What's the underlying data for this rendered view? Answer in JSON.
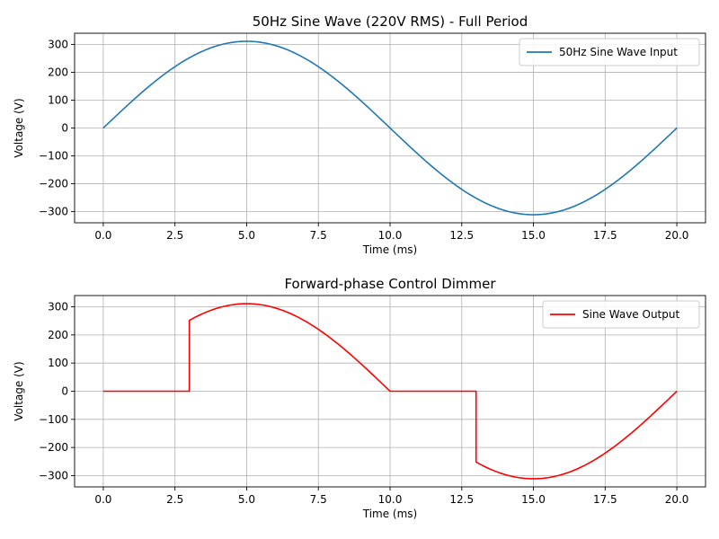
{
  "chart_data": [
    {
      "type": "line",
      "title": "50Hz Sine Wave (220V RMS) - Full Period",
      "xlabel": "Time (ms)",
      "ylabel": "Voltage (V)",
      "xlim": [
        -1,
        21
      ],
      "ylim": [
        -340,
        340
      ],
      "xticks": [
        0.0,
        2.5,
        5.0,
        7.5,
        10.0,
        12.5,
        15.0,
        17.5,
        20.0
      ],
      "xtick_labels": [
        "0.0",
        "2.5",
        "5.0",
        "7.5",
        "10.0",
        "12.5",
        "15.0",
        "17.5",
        "20.0"
      ],
      "yticks": [
        -300,
        -200,
        -100,
        0,
        100,
        200,
        300
      ],
      "ytick_labels": [
        "−300",
        "−200",
        "−100",
        "0",
        "100",
        "200",
        "300"
      ],
      "grid": true,
      "legend_position": "top-right",
      "series": [
        {
          "name": "50Hz Sine Wave Input",
          "color": "#1f77b4",
          "x": [
            0,
            1,
            2,
            3,
            4,
            5,
            6,
            7,
            8,
            9,
            10,
            11,
            12,
            13,
            14,
            15,
            16,
            17,
            18,
            19,
            20
          ],
          "y": [
            0,
            96.1,
            182.9,
            251.7,
            295.9,
            311.1,
            295.9,
            251.7,
            182.9,
            96.1,
            0,
            -96.1,
            -182.9,
            -251.7,
            -295.9,
            -311.1,
            -295.9,
            -251.7,
            -182.9,
            -96.1,
            0
          ]
        }
      ]
    },
    {
      "type": "line",
      "title": "Forward-phase Control Dimmer",
      "xlabel": "Time (ms)",
      "ylabel": "Voltage (V)",
      "xlim": [
        -1,
        21
      ],
      "ylim": [
        -340,
        340
      ],
      "xticks": [
        0.0,
        2.5,
        5.0,
        7.5,
        10.0,
        12.5,
        15.0,
        17.5,
        20.0
      ],
      "xtick_labels": [
        "0.0",
        "2.5",
        "5.0",
        "7.5",
        "10.0",
        "12.5",
        "15.0",
        "17.5",
        "20.0"
      ],
      "yticks": [
        -300,
        -200,
        -100,
        0,
        100,
        200,
        300
      ],
      "ytick_labels": [
        "−300",
        "−200",
        "−100",
        "0",
        "100",
        "200",
        "300"
      ],
      "grid": true,
      "legend_position": "top-right",
      "series": [
        {
          "name": "Sine Wave Output",
          "color": "#ff0000",
          "x": [
            0,
            3,
            3,
            4,
            5,
            6,
            7,
            8,
            9,
            10,
            13,
            13,
            14,
            15,
            16,
            17,
            18,
            19,
            20
          ],
          "y": [
            0,
            0,
            251.7,
            295.9,
            311.1,
            295.9,
            251.7,
            182.9,
            96.1,
            0,
            0,
            -251.7,
            -295.9,
            -311.1,
            -295.9,
            -251.7,
            -182.9,
            -96.1,
            0
          ]
        }
      ]
    }
  ]
}
